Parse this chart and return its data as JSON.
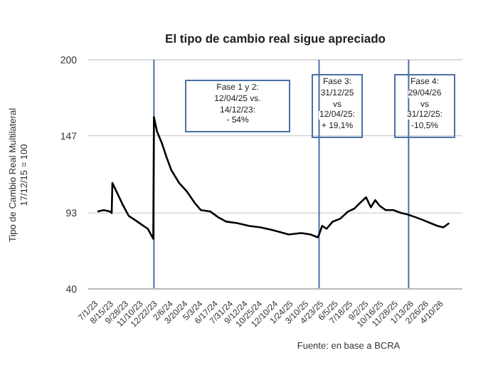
{
  "chart_data": {
    "type": "line",
    "title": "El tipo de cambio real sigue apreciado",
    "ylabel": "Tipo de Cambio Real Multilateral\n17/12/15 = 100",
    "x": [
      "2023-07-01",
      "2023-07-20",
      "2023-08-07",
      "2023-08-12",
      "2023-08-14",
      "2023-08-30",
      "2023-09-13",
      "2023-10-01",
      "2023-10-20",
      "2023-11-07",
      "2023-11-26",
      "2023-12-12",
      "2023-12-14",
      "2023-12-23",
      "2024-01-06",
      "2024-01-20",
      "2024-02-03",
      "2024-02-26",
      "2024-03-20",
      "2024-04-12",
      "2024-04-30",
      "2024-05-28",
      "2024-06-20",
      "2024-07-13",
      "2024-08-14",
      "2024-09-19",
      "2024-10-22",
      "2024-11-28",
      "2025-01-13",
      "2025-02-18",
      "2025-03-18",
      "2025-04-08",
      "2025-04-12",
      "2025-04-21",
      "2025-05-04",
      "2025-05-22",
      "2025-06-13",
      "2025-07-06",
      "2025-07-24",
      "2025-08-10",
      "2025-08-28",
      "2025-09-11",
      "2025-09-24",
      "2025-10-07",
      "2025-10-25",
      "2025-11-16",
      "2025-12-09",
      "2025-12-27",
      "2026-01-21",
      "2026-02-12",
      "2026-03-05",
      "2026-03-26",
      "2026-04-12",
      "2026-04-29"
    ],
    "series": [
      {
        "color": "#000000",
        "values": [
          94,
          95,
          94,
          93,
          114,
          106,
          99,
          91,
          88,
          85,
          82,
          75,
          160,
          150,
          142,
          132,
          123,
          114,
          108,
          100,
          95,
          94,
          90,
          87,
          86,
          84,
          83,
          81,
          78,
          79,
          78,
          76,
          78,
          84,
          82,
          87,
          89,
          94,
          96,
          100,
          104,
          97,
          102,
          98,
          95,
          95,
          93,
          92,
          90,
          88,
          86,
          84,
          83,
          86
        ]
      }
    ],
    "marker": "none",
    "line_style": "solid",
    "xlim": [
      "2023-06-04",
      "2026-06-07"
    ],
    "xticks": [
      {
        "value": "2023-07-01",
        "label": "7/1/23"
      },
      {
        "value": "2023-08-15",
        "label": "8/15/23"
      },
      {
        "value": "2023-09-28",
        "label": "9/28/23"
      },
      {
        "value": "2023-11-10",
        "label": "11/10/23"
      },
      {
        "value": "2023-12-22",
        "label": "12/22/23"
      },
      {
        "value": "2024-02-06",
        "label": "2/6/24"
      },
      {
        "value": "2024-03-20",
        "label": "3/20/24"
      },
      {
        "value": "2024-05-03",
        "label": "5/3/24"
      },
      {
        "value": "2024-06-17",
        "label": "6/17/24"
      },
      {
        "value": "2024-07-31",
        "label": "7/31/24"
      },
      {
        "value": "2024-09-12",
        "label": "9/12/24"
      },
      {
        "value": "2024-10-25",
        "label": "10/25/24"
      },
      {
        "value": "2024-12-10",
        "label": "12/10/24"
      },
      {
        "value": "2025-01-24",
        "label": "1/24/25"
      },
      {
        "value": "2025-03-10",
        "label": "3/10/25"
      },
      {
        "value": "2025-04-23",
        "label": "4/23/25"
      },
      {
        "value": "2025-06-05",
        "label": "6/5/25"
      },
      {
        "value": "2025-07-18",
        "label": "7/18/25"
      },
      {
        "value": "2025-09-02",
        "label": "9/2/25"
      },
      {
        "value": "2025-10-16",
        "label": "10/16/25"
      },
      {
        "value": "2025-11-28",
        "label": "11/28/25"
      },
      {
        "value": "2026-01-13",
        "label": "1/13/26"
      },
      {
        "value": "2026-02-26",
        "label": "2/26/26"
      },
      {
        "value": "2026-04-10",
        "label": "4/10/26"
      }
    ],
    "ylim": [
      40,
      200
    ],
    "yticks": [
      40,
      93,
      147,
      200
    ],
    "grid": "y",
    "ref_lines": [
      {
        "axis": "x",
        "value": "2023-12-14",
        "color": "#4a6fa5"
      },
      {
        "axis": "x",
        "value": "2025-04-12",
        "color": "#4a6fa5"
      },
      {
        "axis": "x",
        "value": "2025-12-31",
        "color": "#4a6fa5"
      }
    ],
    "annotations": [
      "Fase 1 y 2:\n12/04/25 vs.\n14/12/23:\n- 54%",
      "Fase 3:\n31/12/25\nvs\n12/04/25:\n+ 19,1%",
      "Fase 4:\n29/04/26\nvs\n31/12/25:\n-10,5%",
      "Fuente: en base a BCRA"
    ]
  }
}
